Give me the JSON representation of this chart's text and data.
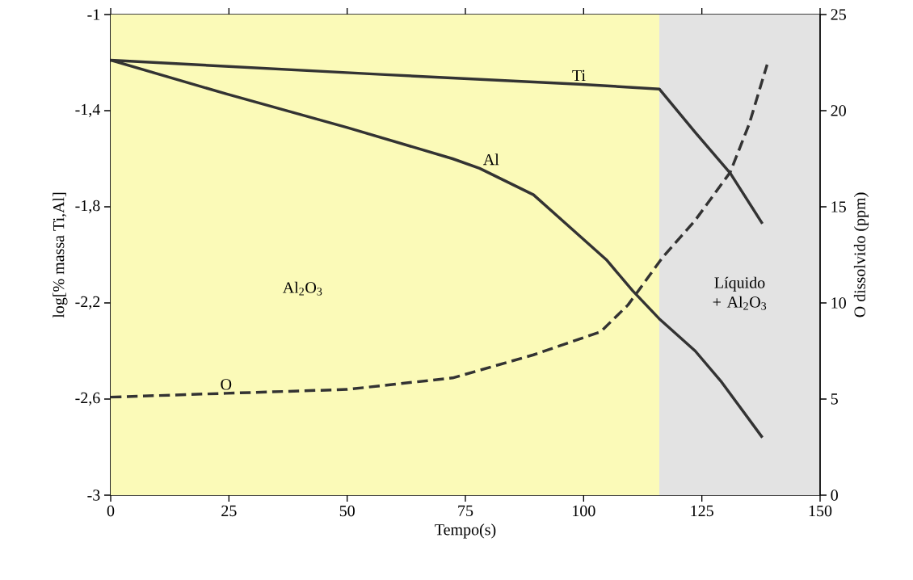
{
  "chart_data": {
    "type": "line",
    "xlabel": "Tempo(s)",
    "ylabel": "log[% massa Ti,Al]",
    "y2label": "O dissolvido (ppm)",
    "xlim": [
      0,
      150
    ],
    "xticks": [
      0,
      25,
      50,
      75,
      100,
      125,
      150
    ],
    "ylim": [
      -3,
      -1
    ],
    "yticks": [
      -3,
      {
        "value": -2.6,
        "label": "-2,6"
      },
      {
        "value": -2.2,
        "label": "-2,2"
      },
      {
        "value": -1.8,
        "label": "-1,8"
      },
      {
        "value": -1.4,
        "label": "-1,4"
      },
      -1
    ],
    "y2lim": [
      0,
      25
    ],
    "y2ticks": [
      0,
      5,
      10,
      15,
      20,
      25
    ],
    "series": [
      {
        "name": "Ti",
        "color": "#333333",
        "line_style": "solid",
        "x": [
          0,
          58,
          99,
          116,
          123.6,
          131,
          137.8
        ],
        "values": [
          -1.19,
          -1.25,
          -1.29,
          -1.31,
          -1.49,
          -1.66,
          -1.87
        ]
      },
      {
        "name": "Al",
        "color": "#333333",
        "line_style": "solid",
        "x": [
          0,
          24.4,
          50,
          72.3,
          78,
          89.4,
          104.8,
          110.4,
          116.2,
          123.6,
          129.2,
          137.8
        ],
        "values": [
          -1.19,
          -1.33,
          -1.47,
          -1.6,
          -1.64,
          -1.75,
          -2.02,
          -2.15,
          -2.27,
          -2.4,
          -2.53,
          -2.76
        ]
      },
      {
        "name": "O",
        "color": "#333333",
        "line_style": "dashed",
        "axis": "y2",
        "x": [
          0,
          24.4,
          50,
          72.3,
          89.4,
          103.6,
          109.4,
          116.8,
          123.6,
          131,
          135,
          138.8
        ],
        "values": [
          5.1,
          5.3,
          5.5,
          6.1,
          7.3,
          8.5,
          9.9,
          12.4,
          14.3,
          16.8,
          19.3,
          22.4
        ]
      }
    ],
    "bands": [
      {
        "axis": "x",
        "from": 0,
        "to": 116,
        "color": "#fbfab8",
        "label": "Al$_{2}$O$_{3}$"
      },
      {
        "axis": "x",
        "from": 116,
        "to": 150,
        "color": "#e3e3e3",
        "label": "Líquido + Al$_{2}$O$_{3}$"
      }
    ]
  }
}
